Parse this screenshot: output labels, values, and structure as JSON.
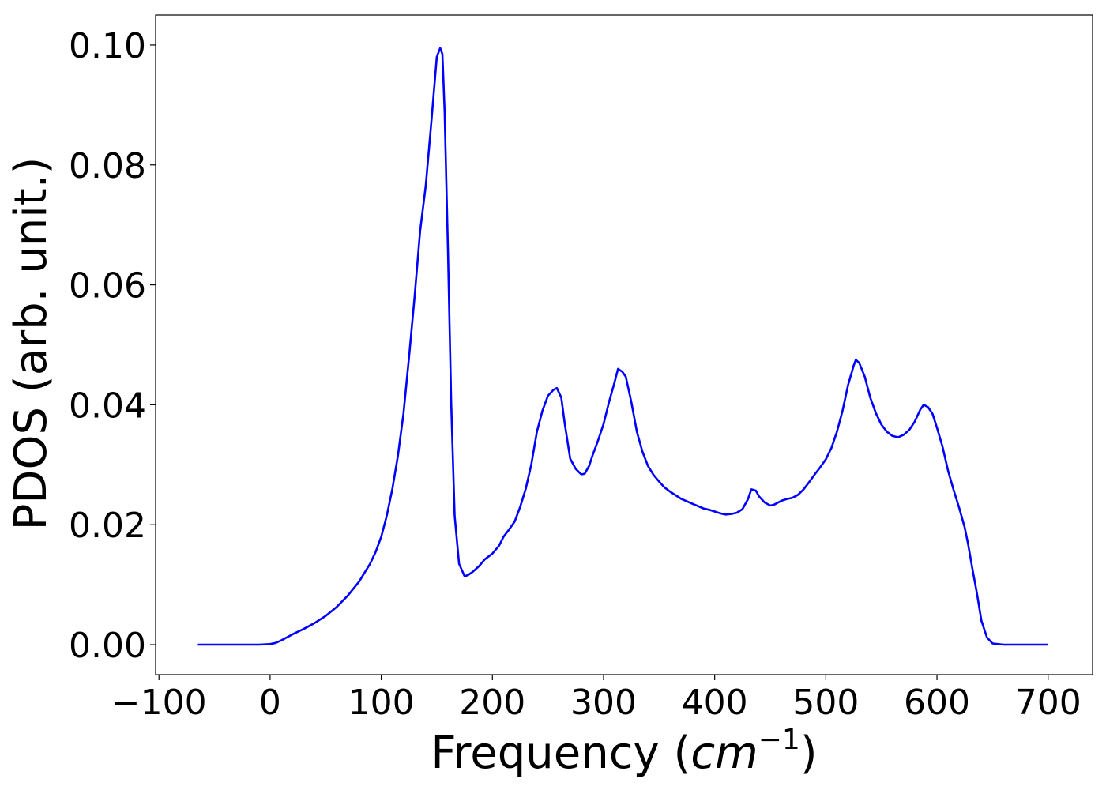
{
  "chart_data": {
    "type": "line",
    "xlabel": "Frequency (cm⁻¹)",
    "xlabel_parts": {
      "prefix": "Frequency (",
      "unit_base": "cm",
      "unit_exp": "−1",
      "suffix": ")"
    },
    "ylabel": "PDOS (arb. unit.)",
    "xlim": [
      -103,
      740
    ],
    "ylim": [
      -0.005,
      0.105
    ],
    "xticks": [
      -100,
      0,
      100,
      200,
      300,
      400,
      500,
      600,
      700
    ],
    "xtick_labels": [
      "−100",
      "0",
      "100",
      "200",
      "300",
      "400",
      "500",
      "600",
      "700"
    ],
    "yticks": [
      0.0,
      0.02,
      0.04,
      0.06,
      0.08,
      0.1
    ],
    "ytick_labels": [
      "0.00",
      "0.02",
      "0.04",
      "0.06",
      "0.08",
      "0.10"
    ],
    "grid": false,
    "legend": null,
    "series": [
      {
        "color": "#0000ff",
        "x": [
          -65,
          -40,
          -20,
          -10,
          0,
          5,
          10,
          15,
          20,
          30,
          40,
          50,
          60,
          70,
          80,
          90,
          95,
          100,
          105,
          110,
          115,
          120,
          125,
          130,
          135,
          140,
          145,
          150,
          153,
          155,
          157,
          160,
          163,
          166,
          170,
          175,
          178,
          182,
          188,
          193,
          200,
          206,
          210,
          215,
          220,
          225,
          230,
          235,
          240,
          245,
          250,
          255,
          258,
          262,
          265,
          270,
          275,
          280,
          283,
          287,
          290,
          295,
          300,
          305,
          310,
          313,
          317,
          320,
          325,
          330,
          335,
          340,
          345,
          350,
          355,
          360,
          365,
          370,
          375,
          380,
          385,
          390,
          395,
          400,
          405,
          410,
          415,
          420,
          425,
          430,
          433,
          437,
          440,
          445,
          450,
          453,
          457,
          460,
          465,
          470,
          475,
          480,
          485,
          490,
          495,
          500,
          505,
          510,
          515,
          520,
          525,
          527,
          530,
          535,
          540,
          545,
          550,
          555,
          560,
          565,
          570,
          575,
          580,
          585,
          588,
          592,
          596,
          600,
          605,
          610,
          615,
          620,
          625,
          628,
          632,
          636,
          640,
          645,
          650,
          660,
          680,
          700
        ],
        "y": [
          0.0,
          0.0,
          0.0,
          0.0,
          0.0001,
          0.0003,
          0.0007,
          0.0012,
          0.0017,
          0.0026,
          0.0036,
          0.0048,
          0.0063,
          0.0082,
          0.0105,
          0.0135,
          0.0155,
          0.018,
          0.0215,
          0.026,
          0.0315,
          0.0385,
          0.048,
          0.058,
          0.069,
          0.0765,
          0.087,
          0.098,
          0.0995,
          0.0985,
          0.089,
          0.066,
          0.04,
          0.0215,
          0.0135,
          0.0114,
          0.0116,
          0.0121,
          0.0131,
          0.0142,
          0.0152,
          0.0165,
          0.018,
          0.0192,
          0.0205,
          0.023,
          0.026,
          0.03,
          0.0355,
          0.039,
          0.0415,
          0.0425,
          0.0428,
          0.0412,
          0.037,
          0.031,
          0.0293,
          0.0284,
          0.0285,
          0.0298,
          0.0315,
          0.034,
          0.0368,
          0.0405,
          0.0438,
          0.046,
          0.0455,
          0.0447,
          0.0405,
          0.0355,
          0.0322,
          0.0298,
          0.0283,
          0.0272,
          0.0262,
          0.0255,
          0.0249,
          0.0243,
          0.0239,
          0.0235,
          0.0231,
          0.0227,
          0.0225,
          0.0222,
          0.0219,
          0.0217,
          0.0218,
          0.022,
          0.0226,
          0.0243,
          0.0259,
          0.0257,
          0.0247,
          0.0237,
          0.0232,
          0.0233,
          0.0237,
          0.024,
          0.0243,
          0.0245,
          0.025,
          0.0259,
          0.0271,
          0.0284,
          0.0296,
          0.0309,
          0.0328,
          0.0355,
          0.039,
          0.0433,
          0.0465,
          0.0475,
          0.047,
          0.0447,
          0.0412,
          0.0386,
          0.0367,
          0.0355,
          0.0348,
          0.0346,
          0.035,
          0.0358,
          0.0372,
          0.0392,
          0.04,
          0.0396,
          0.0385,
          0.0362,
          0.033,
          0.029,
          0.0258,
          0.0228,
          0.0195,
          0.0168,
          0.0125,
          0.0085,
          0.004,
          0.0012,
          0.0002,
          0.0,
          0.0,
          0.0
        ]
      }
    ]
  }
}
